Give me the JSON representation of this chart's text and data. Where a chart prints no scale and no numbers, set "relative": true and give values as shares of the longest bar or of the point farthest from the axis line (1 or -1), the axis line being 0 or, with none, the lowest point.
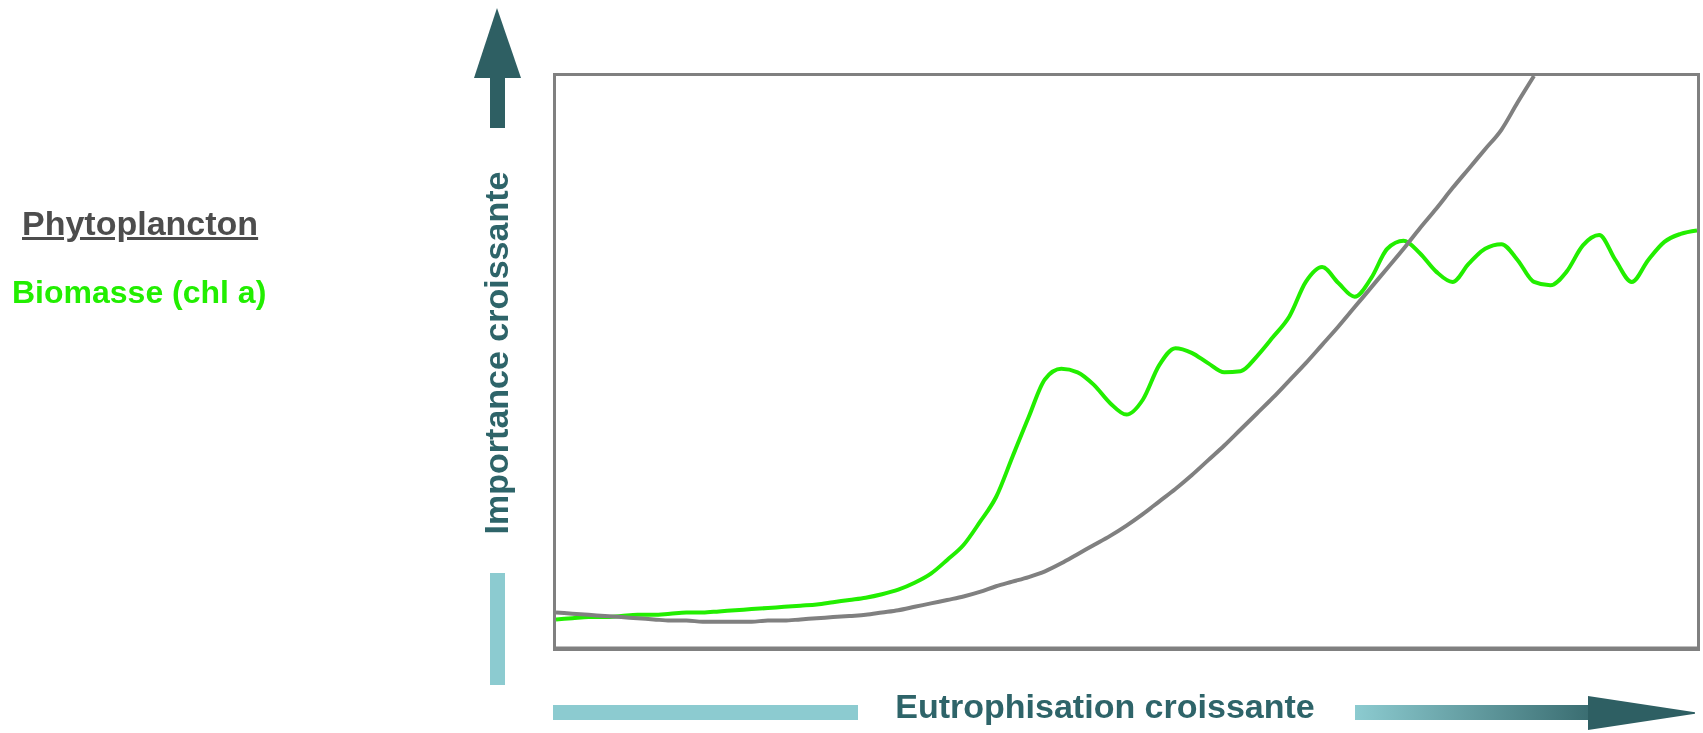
{
  "chart_data": {
    "type": "line",
    "title": "Phytoplancton",
    "xlabel": "Eutrophisation croissante",
    "ylabel": "Importance croissante",
    "relative": true,
    "legend": "left",
    "marker": "none",
    "line_style": "solid",
    "grid": false,
    "categories": [
      null,
      null,
      null,
      null,
      null,
      null,
      null,
      null,
      null,
      null,
      null,
      null,
      null,
      null,
      null,
      null,
      null,
      null,
      null,
      null,
      null,
      null,
      null,
      null,
      null,
      null,
      null,
      null,
      null,
      null,
      null,
      null,
      null,
      null,
      null,
      null,
      null,
      null,
      null,
      null,
      null,
      null,
      null,
      null,
      null,
      null,
      null,
      null,
      null,
      null,
      null,
      null,
      null,
      null,
      null,
      null,
      null,
      null,
      null,
      null,
      null,
      null,
      null,
      null,
      null,
      null,
      null,
      null,
      null,
      null,
      null
    ],
    "series": [
      {
        "name": "Biomasse (chl a)",
        "color": "#22ee00",
        "values": [
          0.05,
          0.052,
          0.054,
          0.054,
          0.056,
          0.058,
          0.058,
          0.06,
          0.062,
          0.062,
          0.064,
          0.066,
          0.068,
          0.07,
          0.072,
          0.074,
          0.076,
          0.08,
          0.084,
          0.088,
          0.094,
          0.102,
          0.114,
          0.13,
          0.154,
          0.18,
          0.22,
          0.264,
          0.334,
          0.404,
          0.47,
          0.488,
          0.482,
          0.46,
          0.428,
          0.408,
          0.434,
          0.494,
          0.524,
          0.516,
          0.498,
          0.482,
          0.484,
          0.51,
          0.544,
          0.58,
          0.64,
          0.666,
          0.638,
          0.614,
          0.646,
          0.698,
          0.712,
          0.69,
          0.658,
          0.64,
          0.672,
          0.698,
          0.706,
          0.678,
          0.64,
          0.634,
          0.658,
          0.704,
          0.722,
          0.678,
          0.64,
          0.678,
          0.71,
          0.724,
          0.73
        ]
      },
      {
        "color": "#808080",
        "values": [
          0.062,
          0.06,
          0.058,
          0.056,
          0.054,
          0.052,
          0.05,
          0.048,
          0.048,
          0.046,
          0.046,
          0.046,
          0.046,
          0.048,
          0.048,
          0.05,
          0.052,
          0.054,
          0.056,
          0.058,
          0.062,
          0.066,
          0.072,
          0.078,
          0.084,
          0.09,
          0.098,
          0.108,
          0.116,
          0.124,
          0.134,
          0.148,
          0.164,
          0.18,
          0.196,
          0.214,
          0.234,
          0.256,
          0.278,
          0.302,
          0.328,
          0.354,
          0.382,
          0.41,
          0.438,
          0.468,
          0.498,
          0.53,
          0.562,
          0.596,
          0.63,
          0.664,
          0.698,
          0.734,
          0.768,
          0.804,
          0.838,
          0.872,
          0.906,
          0.954,
          1.0,
          null,
          null,
          null,
          null,
          null,
          null,
          null,
          null,
          null,
          null
        ]
      }
    ]
  }
}
